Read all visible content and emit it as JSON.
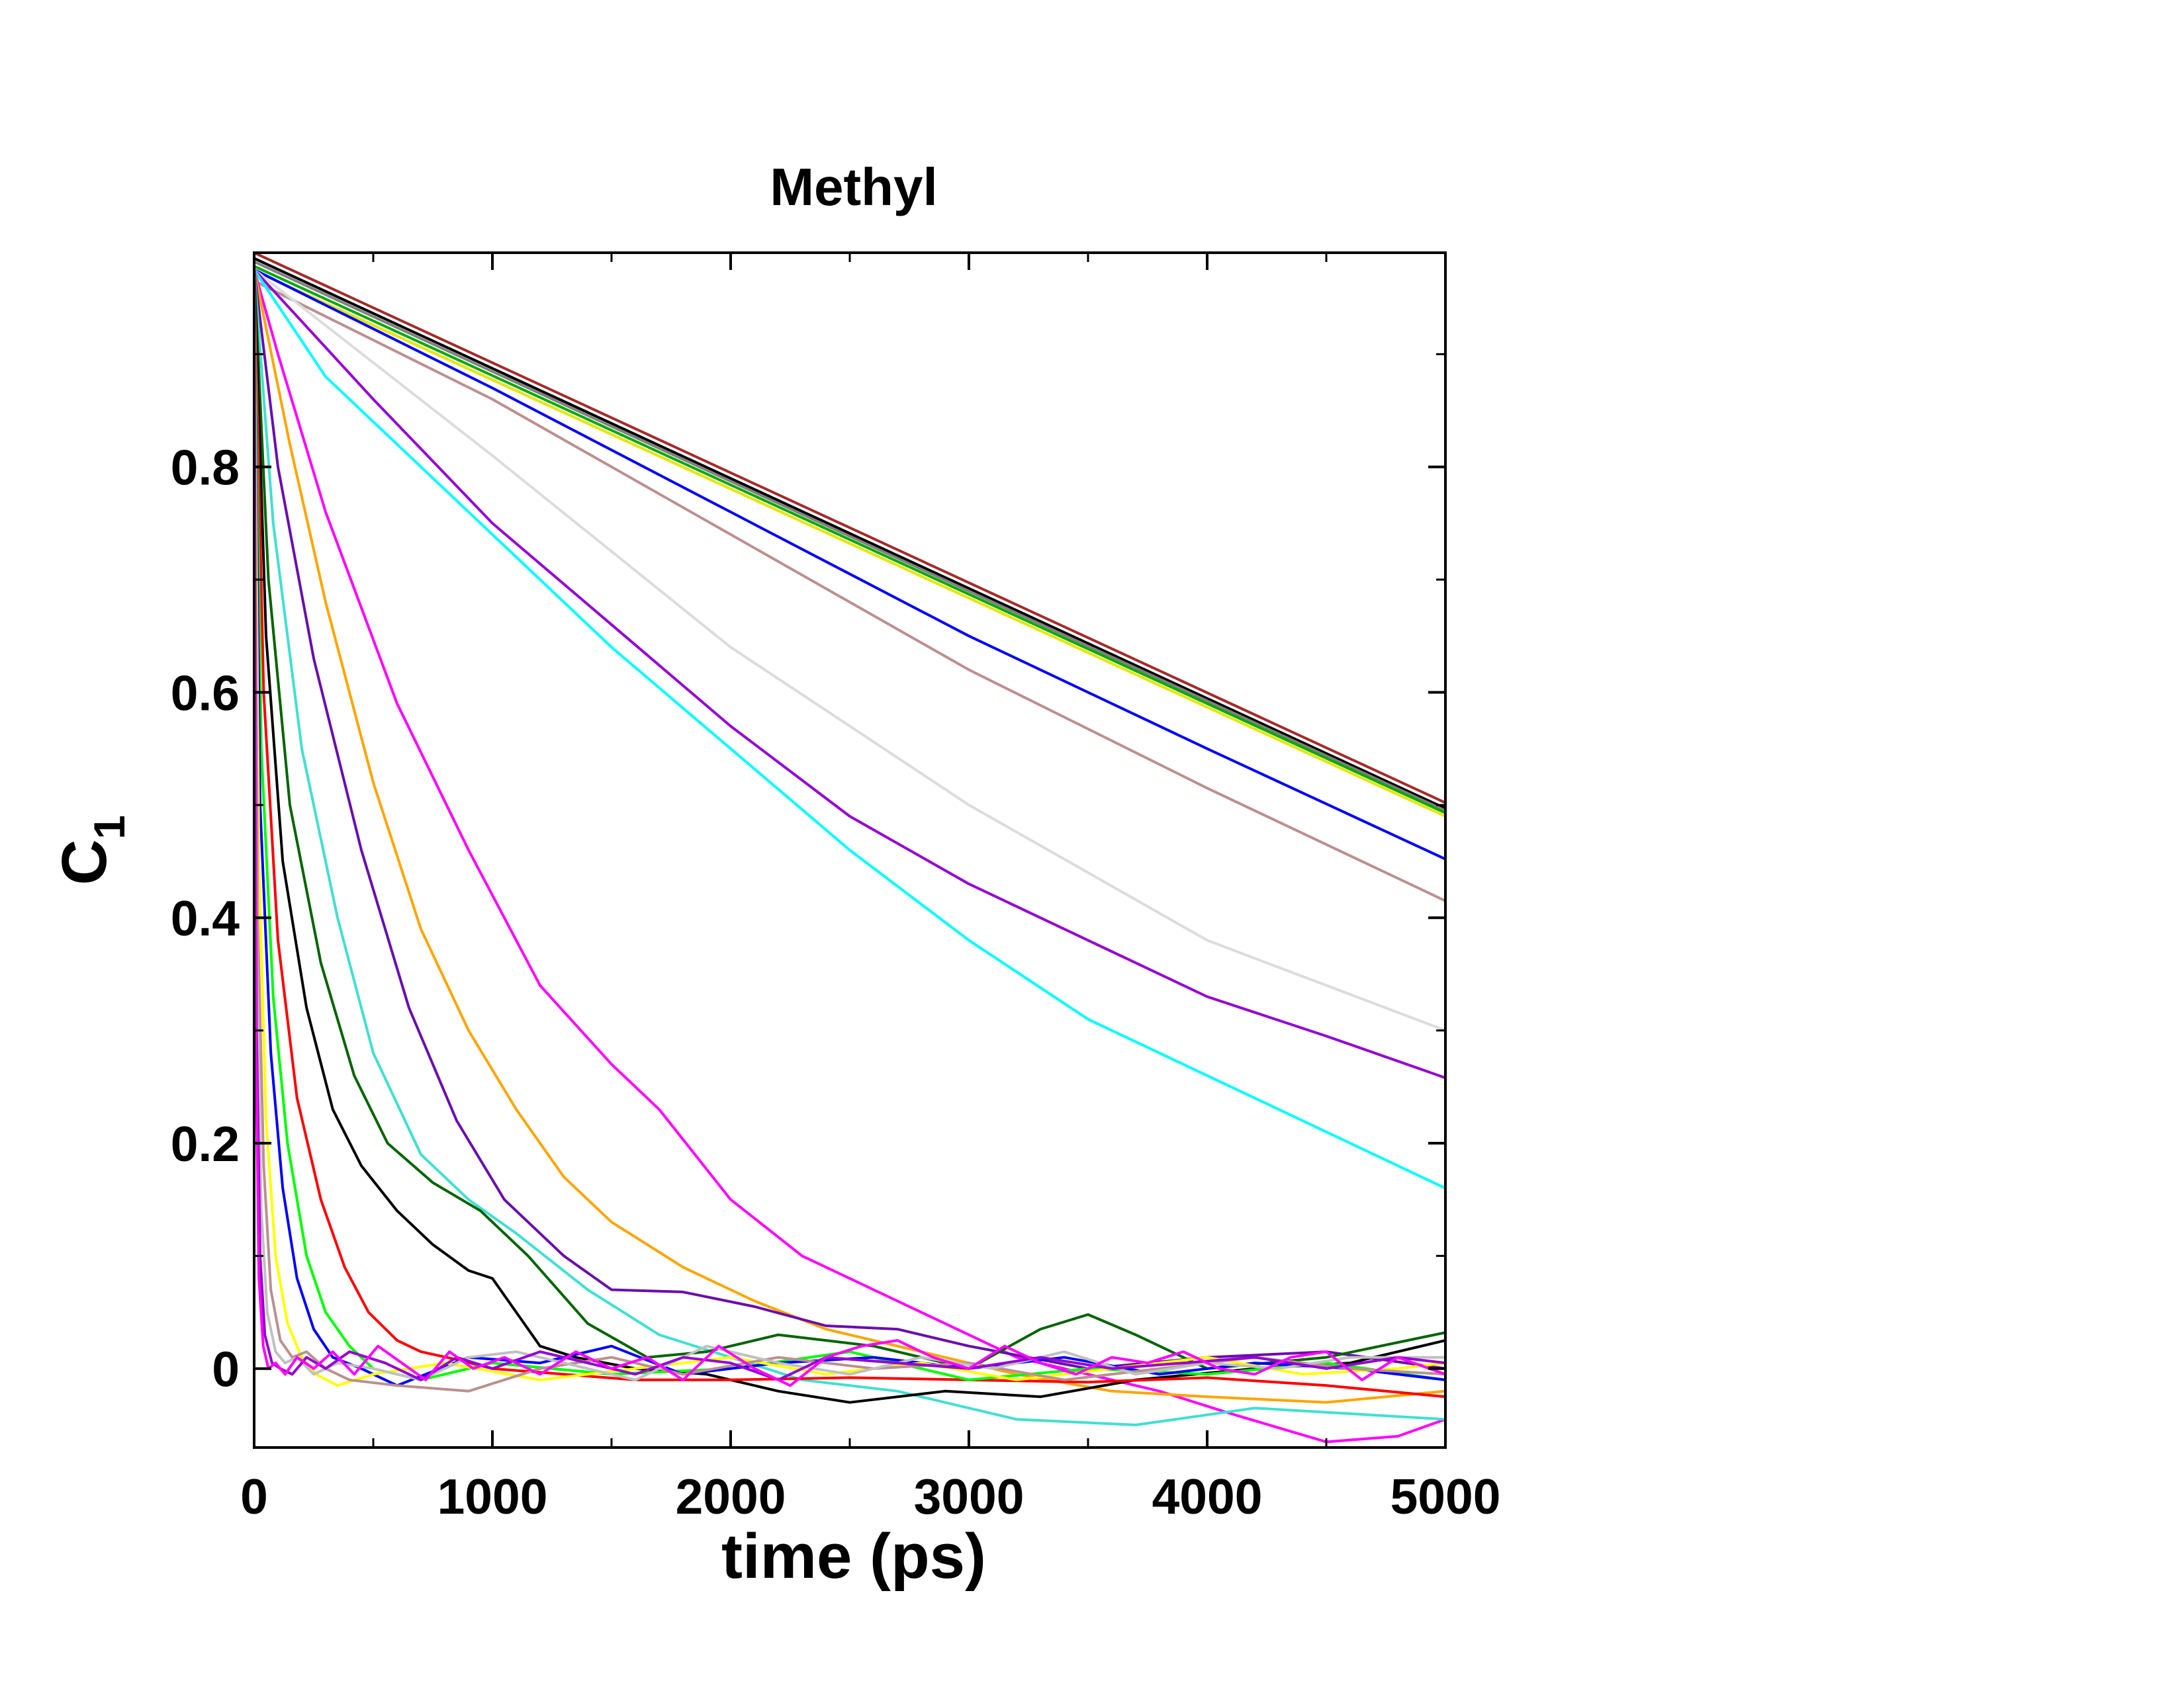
{
  "chart_data": {
    "type": "line",
    "title": "Methyl",
    "xlabel": "time (ps)",
    "ylabel": "C",
    "ylabel_subscript": "1",
    "xlim": [
      0,
      5000
    ],
    "ylim": [
      -0.07,
      0.99
    ],
    "xticks": [
      0,
      1000,
      2000,
      3000,
      4000,
      5000
    ],
    "xtick_labels": [
      "0",
      "1000",
      "2000",
      "3000",
      "4000",
      "5000"
    ],
    "yticks": [
      0,
      0.2,
      0.4,
      0.6,
      0.8
    ],
    "ytick_labels": [
      "0",
      "0.2",
      "0.4",
      "0.6",
      "0.8"
    ],
    "grid": false,
    "legend": "none",
    "series": [
      {
        "color": "#a52a2a",
        "x": [
          0,
          5000
        ],
        "y": [
          0.99,
          0.502
        ]
      },
      {
        "color": "#000000",
        "x": [
          0,
          5000
        ],
        "y": [
          0.985,
          0.497
        ]
      },
      {
        "color": "#808080",
        "x": [
          0,
          5000
        ],
        "y": [
          0.982,
          0.495
        ]
      },
      {
        "color": "#00aa00",
        "x": [
          0,
          5000
        ],
        "y": [
          0.978,
          0.493
        ]
      },
      {
        "color": "#e6e600",
        "x": [
          0,
          5000
        ],
        "y": [
          0.974,
          0.49
        ]
      },
      {
        "color": "#0000ff",
        "x": [
          0,
          1000,
          2000,
          3000,
          4000,
          5000
        ],
        "y": [
          0.975,
          0.87,
          0.76,
          0.65,
          0.55,
          0.452
        ]
      },
      {
        "color": "#bc8f8f",
        "x": [
          0,
          1000,
          2000,
          3000,
          4000,
          5000
        ],
        "y": [
          0.965,
          0.86,
          0.74,
          0.62,
          0.515,
          0.415
        ]
      },
      {
        "color": "#dcdcdc",
        "x": [
          0,
          1000,
          2000,
          3000,
          4000,
          5000
        ],
        "y": [
          0.975,
          0.81,
          0.64,
          0.5,
          0.38,
          0.3
        ]
      },
      {
        "color": "#9400d3",
        "x": [
          0,
          500,
          1000,
          1500,
          2000,
          2500,
          3000,
          3500,
          4000,
          4500,
          5000
        ],
        "y": [
          0.975,
          0.86,
          0.75,
          0.66,
          0.57,
          0.49,
          0.43,
          0.38,
          0.33,
          0.295,
          0.258
        ]
      },
      {
        "color": "#00ffff",
        "x": [
          0,
          300,
          600,
          1000,
          1500,
          2000,
          2500,
          3000,
          3500,
          4000,
          4500,
          5000
        ],
        "y": [
          0.975,
          0.88,
          0.82,
          0.74,
          0.64,
          0.55,
          0.46,
          0.38,
          0.31,
          0.26,
          0.21,
          0.16
        ]
      },
      {
        "color": "#ff00ff",
        "x": [
          0,
          100,
          300,
          600,
          900,
          1200,
          1500,
          1700,
          2000,
          2300,
          2600,
          2900,
          3200,
          3500,
          3800,
          4100,
          4500,
          4800,
          5000
        ],
        "y": [
          0.975,
          0.9,
          0.76,
          0.59,
          0.46,
          0.34,
          0.27,
          0.23,
          0.15,
          0.1,
          0.07,
          0.04,
          0.01,
          -0.005,
          -0.02,
          -0.04,
          -0.065,
          -0.06,
          -0.045
        ]
      },
      {
        "color": "#ffa500",
        "x": [
          0,
          150,
          300,
          500,
          700,
          900,
          1100,
          1300,
          1500,
          1800,
          2100,
          2400,
          2800,
          3200,
          3600,
          4000,
          4500,
          5000
        ],
        "y": [
          0.975,
          0.82,
          0.68,
          0.52,
          0.39,
          0.3,
          0.23,
          0.17,
          0.13,
          0.09,
          0.06,
          0.035,
          0.015,
          -0.005,
          -0.02,
          -0.025,
          -0.03,
          -0.02
        ]
      },
      {
        "color": "#6a0dad",
        "x": [
          0,
          100,
          250,
          450,
          650,
          850,
          1050,
          1300,
          1500,
          1800,
          2100,
          2400,
          2700,
          3000,
          3500,
          4000,
          4500,
          5000
        ],
        "y": [
          0.975,
          0.8,
          0.63,
          0.46,
          0.32,
          0.22,
          0.15,
          0.1,
          0.07,
          0.068,
          0.055,
          0.038,
          0.035,
          0.02,
          0.0,
          0.01,
          0.015,
          0.0
        ]
      },
      {
        "color": "#40e0d0",
        "x": [
          0,
          80,
          200,
          350,
          500,
          700,
          900,
          1100,
          1400,
          1700,
          2000,
          2300,
          2700,
          3200,
          3700,
          4200,
          4600,
          5000
        ],
        "y": [
          0.975,
          0.75,
          0.55,
          0.4,
          0.28,
          0.19,
          0.15,
          0.12,
          0.07,
          0.03,
          0.01,
          -0.01,
          -0.02,
          -0.045,
          -0.05,
          -0.035,
          -0.04,
          -0.045
        ]
      },
      {
        "color": "#006400",
        "x": [
          0,
          60,
          150,
          280,
          420,
          560,
          750,
          950,
          1150,
          1400,
          1650,
          1900,
          2200,
          2600,
          3000,
          3300,
          3500,
          3700,
          4000,
          4500,
          5000
        ],
        "y": [
          0.975,
          0.7,
          0.5,
          0.36,
          0.26,
          0.2,
          0.165,
          0.14,
          0.1,
          0.04,
          0.01,
          0.015,
          0.03,
          0.02,
          0.0,
          0.035,
          0.048,
          0.03,
          0.0,
          0.01,
          0.032
        ]
      },
      {
        "color": "#000000",
        "x": [
          0,
          50,
          120,
          220,
          330,
          450,
          600,
          750,
          900,
          1000,
          1100,
          1200,
          1350,
          1600,
          1900,
          2200,
          2500,
          2900,
          3300,
          3700,
          4200,
          4600,
          5000
        ],
        "y": [
          0.975,
          0.65,
          0.45,
          0.32,
          0.23,
          0.18,
          0.14,
          0.11,
          0.087,
          0.08,
          0.05,
          0.02,
          0.01,
          0.0,
          -0.005,
          -0.02,
          -0.03,
          -0.02,
          -0.025,
          -0.01,
          0.0,
          0.005,
          0.025
        ]
      },
      {
        "color": "#ff0000",
        "x": [
          0,
          40,
          100,
          180,
          280,
          380,
          480,
          600,
          700,
          850,
          1000,
          1300,
          1600,
          2000,
          2500,
          3000,
          3500,
          4000,
          4500,
          5000
        ],
        "y": [
          0.975,
          0.6,
          0.38,
          0.24,
          0.15,
          0.09,
          0.05,
          0.025,
          0.015,
          0.008,
          0.0,
          -0.005,
          -0.01,
          -0.01,
          -0.008,
          -0.01,
          -0.012,
          -0.008,
          -0.015,
          -0.025
        ]
      },
      {
        "color": "#00ff00",
        "x": [
          0,
          30,
          80,
          140,
          220,
          300,
          400,
          500,
          700,
          1000,
          1500,
          2000,
          2500,
          3000,
          3500,
          4000,
          4500,
          5000
        ],
        "y": [
          0.975,
          0.55,
          0.33,
          0.2,
          0.1,
          0.05,
          0.02,
          0.0,
          -0.01,
          0.005,
          -0.005,
          0.0,
          0.015,
          -0.01,
          0.0,
          -0.005,
          0.005,
          -0.01
        ]
      },
      {
        "color": "#0000ff",
        "x": [
          0,
          25,
          70,
          120,
          180,
          250,
          330,
          450,
          600,
          900,
          1200,
          1500,
          1800,
          2200,
          2600,
          3000,
          3400,
          3800,
          4200,
          4600,
          5000
        ],
        "y": [
          0.975,
          0.5,
          0.28,
          0.16,
          0.08,
          0.035,
          0.01,
          0.0,
          -0.015,
          0.01,
          0.005,
          0.02,
          -0.005,
          0.005,
          0.01,
          0.0,
          0.01,
          -0.005,
          0.005,
          0.0,
          -0.01
        ]
      },
      {
        "color": "#ffff00",
        "x": [
          0,
          20,
          50,
          90,
          140,
          200,
          260,
          350,
          500,
          800,
          1200,
          1600,
          2000,
          2400,
          2800,
          3200,
          3600,
          4000,
          4400,
          4800,
          5000
        ],
        "y": [
          0.975,
          0.45,
          0.22,
          0.1,
          0.04,
          0.01,
          -0.005,
          -0.015,
          -0.005,
          0.005,
          -0.01,
          0.0,
          0.01,
          -0.005,
          0.005,
          -0.01,
          0.0,
          0.01,
          -0.005,
          0.0,
          0.005
        ]
      },
      {
        "color": "#bc8f8f",
        "x": [
          0,
          15,
          40,
          70,
          110,
          160,
          220,
          300,
          400,
          600,
          900,
          1200,
          1500,
          1800,
          2200,
          2600,
          3000,
          3400,
          3800,
          4200,
          4600,
          5000
        ],
        "y": [
          0.975,
          0.4,
          0.18,
          0.07,
          0.025,
          0.01,
          0.015,
          0.0,
          -0.01,
          -0.015,
          -0.02,
          0.0,
          0.01,
          -0.005,
          0.01,
          0.0,
          0.005,
          -0.01,
          0.0,
          0.01,
          0.0,
          -0.005
        ]
      },
      {
        "color": "#c0c0c0",
        "x": [
          0,
          12,
          30,
          55,
          90,
          130,
          180,
          250,
          350,
          500,
          700,
          900,
          1100,
          1300,
          1600,
          1900,
          2200,
          2500,
          2800,
          3100,
          3400,
          3700,
          4000,
          4300,
          4600,
          5000
        ],
        "y": [
          0.975,
          0.35,
          0.14,
          0.05,
          0.015,
          0.005,
          0.01,
          -0.005,
          0.005,
          0.0,
          -0.01,
          0.01,
          0.015,
          0.005,
          -0.01,
          0.02,
          0.005,
          -0.005,
          0.01,
          0.0,
          0.015,
          -0.005,
          0.005,
          0.0,
          0.01,
          0.01
        ]
      },
      {
        "color": "#9400d3",
        "x": [
          0,
          10,
          25,
          45,
          75,
          110,
          160,
          220,
          300,
          400,
          550,
          700,
          850,
          1000,
          1200,
          1400,
          1600,
          1800,
          2000,
          2200,
          2400,
          2700,
          3000,
          3300,
          3600,
          3900,
          4200,
          4500,
          4800,
          5000
        ],
        "y": [
          0.975,
          0.3,
          0.1,
          0.03,
          0.005,
          0.0,
          -0.005,
          0.01,
          0.0,
          0.015,
          0.005,
          -0.01,
          0.01,
          0.0,
          0.015,
          0.005,
          -0.005,
          0.01,
          0.005,
          -0.01,
          0.01,
          0.005,
          0.0,
          0.01,
          0.0,
          0.005,
          0.01,
          0.0,
          0.01,
          0.005
        ]
      },
      {
        "color": "#ff00ff",
        "x": [
          0,
          8,
          20,
          38,
          60,
          90,
          130,
          180,
          250,
          330,
          420,
          520,
          620,
          720,
          820,
          920,
          1050,
          1200,
          1350,
          1500,
          1650,
          1800,
          1950,
          2100,
          2250,
          2400,
          2550,
          2700,
          2850,
          3000,
          3150,
          3300,
          3450,
          3600,
          3750,
          3900,
          4050,
          4200,
          4350,
          4500,
          4650,
          4800,
          5000
        ],
        "y": [
          0.975,
          0.28,
          0.08,
          0.02,
          0.0,
          0.005,
          -0.005,
          0.01,
          0.0,
          0.015,
          -0.005,
          0.02,
          0.005,
          -0.01,
          0.015,
          0.0,
          0.01,
          -0.005,
          0.015,
          0.0,
          0.01,
          -0.01,
          0.02,
          0.0,
          -0.015,
          0.01,
          0.02,
          0.025,
          0.01,
          0.0,
          0.02,
          0.005,
          -0.005,
          0.01,
          0.005,
          0.015,
          0.0,
          -0.005,
          0.01,
          0.015,
          -0.01,
          0.01,
          -0.005
        ]
      }
    ]
  }
}
